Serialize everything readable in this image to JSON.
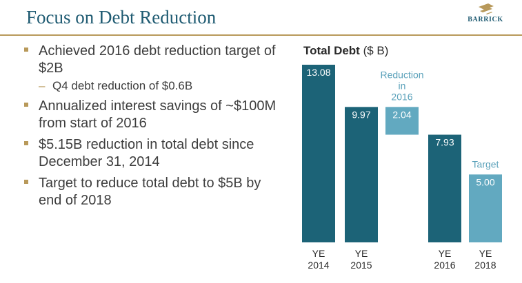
{
  "slide": {
    "title": "Focus on Debt Reduction",
    "logo_text": "BARRICK"
  },
  "bullets": [
    {
      "text": "Achieved 2016 debt reduction target of $2B",
      "sub": [
        "Q4 debt reduction of $0.6B"
      ]
    },
    {
      "text": "Annualized interest savings of ~$100M from start of 2016",
      "sub": []
    },
    {
      "text": "$5.15B reduction in total debt since December 31, 2014",
      "sub": []
    },
    {
      "text": "Target to reduce total debt to $5B by end of 2018",
      "sub": []
    }
  ],
  "colors": {
    "title": "#1f5b72",
    "accent_gold": "#b8995a",
    "bar_dark": "#1c6377",
    "bar_light": "#62a9c0",
    "annotation": "#5aa1ba"
  },
  "chart_data": {
    "type": "bar",
    "title": "Total Debt",
    "title_unit": "($ B)",
    "categories": [
      {
        "label": [
          "YE",
          "2014"
        ],
        "value": 13.08,
        "value_label": "13.08",
        "kind": "actual"
      },
      {
        "label": [
          "YE",
          "2015"
        ],
        "value": 9.97,
        "value_label": "9.97",
        "kind": "actual"
      },
      {
        "label": [],
        "value": 2.04,
        "value_label": "2.04",
        "kind": "reduction",
        "annotation": [
          "Reduction",
          "in",
          "2016"
        ]
      },
      {
        "label": [
          "YE",
          "2016"
        ],
        "value": 7.93,
        "value_label": "7.93",
        "kind": "actual"
      },
      {
        "label": [
          "YE",
          "2018"
        ],
        "value": 5.0,
        "value_label": "5.00",
        "kind": "target",
        "annotation": [
          "Target"
        ]
      }
    ],
    "ylim": [
      0,
      13.08
    ],
    "grid": false,
    "legend": "none"
  }
}
